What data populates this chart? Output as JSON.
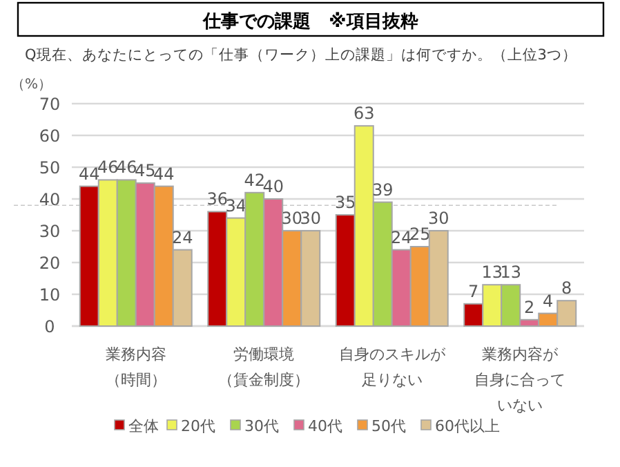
{
  "chart_data": {
    "type": "bar",
    "title": "仕事での課題　※項目抜粋",
    "subtitle": "Q現在、あなたにとっての「仕事（ワーク）上の課題」は何ですか。（上位3つ）",
    "ylabel": "（%）",
    "categories": [
      "業務内容（時間）",
      "労働環境（賃金制度）",
      "自身のスキルが足りない",
      "業務内容が自身に合っていない"
    ],
    "series": [
      {
        "name": "全体",
        "color": "#c00000",
        "values": [
          44,
          36,
          35,
          7
        ]
      },
      {
        "name": "20代",
        "color": "#eef25a",
        "values": [
          46,
          34,
          63,
          13
        ]
      },
      {
        "name": "30代",
        "color": "#a9d44e",
        "values": [
          46,
          42,
          39,
          13
        ]
      },
      {
        "name": "40代",
        "color": "#de6a8c",
        "values": [
          45,
          40,
          24,
          2
        ]
      },
      {
        "name": "50代",
        "color": "#f29a3c",
        "values": [
          44,
          30,
          25,
          4
        ]
      },
      {
        "name": "60代以上",
        "color": "#dcc293",
        "values": [
          24,
          30,
          30,
          8
        ]
      }
    ],
    "ylim": [
      0,
      70
    ],
    "yticks": [
      0,
      10,
      20,
      30,
      40,
      50,
      60,
      70
    ],
    "grid": "y",
    "legend": "bottom",
    "data_labels": true,
    "ref_lines": [
      {
        "axis": "y",
        "value": 38,
        "color": "#c8c8c8",
        "line_style": "dashed"
      }
    ]
  }
}
